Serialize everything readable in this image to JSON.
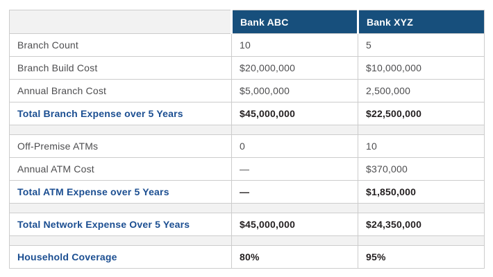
{
  "chart_data": {
    "type": "table",
    "columns": [
      "",
      "Bank ABC",
      "Bank XYZ"
    ],
    "rows": [
      {
        "style": "data",
        "label": "Branch Count",
        "bank_abc": "10",
        "bank_xyz": "5"
      },
      {
        "style": "data",
        "label": "Branch Build Cost",
        "bank_abc": "$20,000,000",
        "bank_xyz": "$10,000,000"
      },
      {
        "style": "data",
        "label": "Annual Branch Cost",
        "bank_abc": "$5,000,000",
        "bank_xyz": "2,500,000"
      },
      {
        "style": "total",
        "label": "Total Branch Expense over 5 Years",
        "bank_abc": "$45,000,000",
        "bank_xyz": "$22,500,000"
      },
      {
        "style": "spacer"
      },
      {
        "style": "data",
        "label": "Off-Premise ATMs",
        "bank_abc": "0",
        "bank_xyz": "10"
      },
      {
        "style": "data",
        "label": "Annual ATM Cost",
        "bank_abc": "—",
        "bank_xyz": "$370,000"
      },
      {
        "style": "total",
        "label": "Total ATM Expense over 5 Years",
        "bank_abc": "—",
        "bank_xyz": "$1,850,000"
      },
      {
        "style": "spacer"
      },
      {
        "style": "total",
        "label": "Total Network Expense Over 5 Years",
        "bank_abc": "$45,000,000",
        "bank_xyz": "$24,350,000"
      },
      {
        "style": "spacer"
      },
      {
        "style": "total",
        "label": "Household Coverage",
        "bank_abc": "80%",
        "bank_xyz": "95%"
      }
    ]
  },
  "colors": {
    "page_bg": "#FFFFFF",
    "header_bg": "#174F7C",
    "header_text": "#FFFFFF",
    "corner_bg": "#F2F2F2",
    "spacer_bg": "#F2F2F2",
    "border_inner": "#CCCCCC",
    "border_outer": "#9E9E9E",
    "body_text": "#4D4D4F",
    "total_value_text": "#231F20",
    "accent_text": "#1B4E91"
  }
}
